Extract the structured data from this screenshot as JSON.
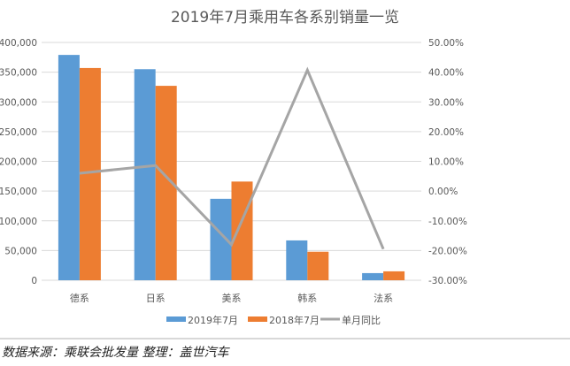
{
  "chart_data": {
    "type": "bar",
    "title": "2019年7月乘用车各系别销量一览",
    "categories": [
      "德系",
      "日系",
      "美系",
      "韩系",
      "法系"
    ],
    "series": [
      {
        "name": "2019年7月",
        "type": "bar",
        "axis": "left",
        "color": "#5b9bd5",
        "values": [
          379000,
          355000,
          137000,
          67000,
          12000
        ]
      },
      {
        "name": "2018年7月",
        "type": "bar",
        "axis": "left",
        "color": "#ed7d31",
        "values": [
          357000,
          327000,
          166000,
          48000,
          15000
        ]
      },
      {
        "name": "单月同比",
        "type": "line",
        "axis": "right",
        "color": "#a5a5a5",
        "values": [
          6.0,
          8.6,
          -18.0,
          40.7,
          -19.5
        ]
      }
    ],
    "yleft": {
      "range": [
        0,
        400000
      ],
      "ticks": [
        "0",
        "50,000",
        "100,000",
        "150,000",
        "200,000",
        "250,000",
        "300,000",
        "350,000",
        "400,000"
      ]
    },
    "yright": {
      "range": [
        -30,
        50
      ],
      "unit": "%",
      "ticks": [
        "-30.00%",
        "-20.00%",
        "-10.00%",
        "0.00%",
        "10.00%",
        "20.00%",
        "30.00%",
        "40.00%",
        "50.00%"
      ]
    },
    "grid": true,
    "legend": "bottom"
  },
  "footer": "数据来源：乘联会批发量  整理：盖世汽车"
}
